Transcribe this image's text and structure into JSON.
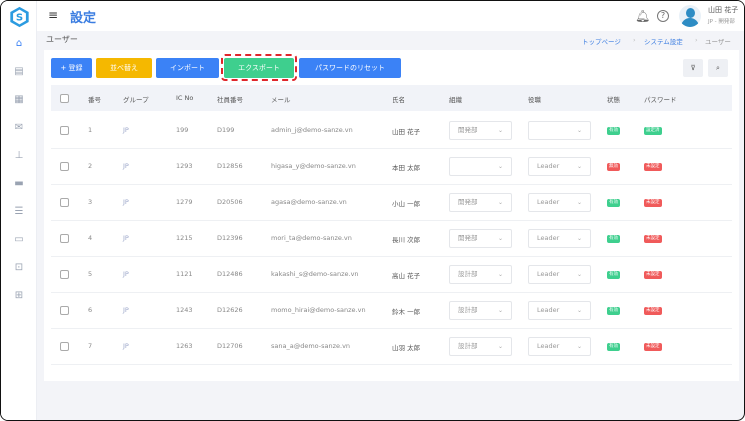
{
  "app": {
    "title": "設定",
    "page_title": "ユーザー"
  },
  "header": {
    "user_name": "山田 花子",
    "user_dept": "JP - 開発部"
  },
  "breadcrumb": [
    "トップページ",
    "システム設定",
    "ユーザー"
  ],
  "toolbar": {
    "register": "+ 登録",
    "sort": "並べ替え",
    "import": "インポート",
    "export": "エクスポート",
    "reset_password": "パスワードのリセット"
  },
  "table": {
    "headers": [
      "番号",
      "グループ",
      "IC No",
      "社員番号",
      "メール",
      "氏名",
      "組織",
      "役職",
      "状態",
      "パスワード"
    ],
    "rows": [
      {
        "no": "1",
        "group": "JP",
        "ic": "199",
        "emp": "D199",
        "email": "admin_j@demo-sanze.vn",
        "name": "山田 花子",
        "org": "開発部",
        "role": "",
        "status": "有効",
        "password": "設定済"
      },
      {
        "no": "2",
        "group": "JP",
        "ic": "1293",
        "emp": "D12856",
        "email": "higasa_y@demo-sanze.vn",
        "name": "本田 太郎",
        "org": "",
        "role": "Leader",
        "status": "無効",
        "password": "未設定"
      },
      {
        "no": "3",
        "group": "JP",
        "ic": "1279",
        "emp": "D20506",
        "email": "agasa@demo-sanze.vn",
        "name": "小山 一郎",
        "org": "開発部",
        "role": "Leader",
        "status": "有効",
        "password": "未設定"
      },
      {
        "no": "4",
        "group": "JP",
        "ic": "1215",
        "emp": "D12396",
        "email": "mori_ta@demo-sanze.vn",
        "name": "長川 次郎",
        "org": "開発部",
        "role": "Leader",
        "status": "有効",
        "password": "未設定"
      },
      {
        "no": "5",
        "group": "JP",
        "ic": "1121",
        "emp": "D12486",
        "email": "kakashi_s@demo-sanze.vn",
        "name": "高山 花子",
        "org": "設計部",
        "role": "Leader",
        "status": "有効",
        "password": "未設定"
      },
      {
        "no": "6",
        "group": "JP",
        "ic": "1243",
        "emp": "D12626",
        "email": "momo_hirai@demo-sanze.vn",
        "name": "鈴木 一郎",
        "org": "設計部",
        "role": "Leader",
        "status": "有効",
        "password": "未設定"
      },
      {
        "no": "7",
        "group": "JP",
        "ic": "1263",
        "emp": "D12706",
        "email": "sana_a@demo-sanze.vn",
        "name": "山羽 太郎",
        "org": "設計部",
        "role": "Leader",
        "status": "有効",
        "password": "未設定"
      }
    ]
  },
  "colors": {
    "primary": "#3b82f6",
    "warning": "#f5b800",
    "success": "#3ecf8e",
    "danger": "#f05a5a",
    "title": "#3b7de1"
  }
}
